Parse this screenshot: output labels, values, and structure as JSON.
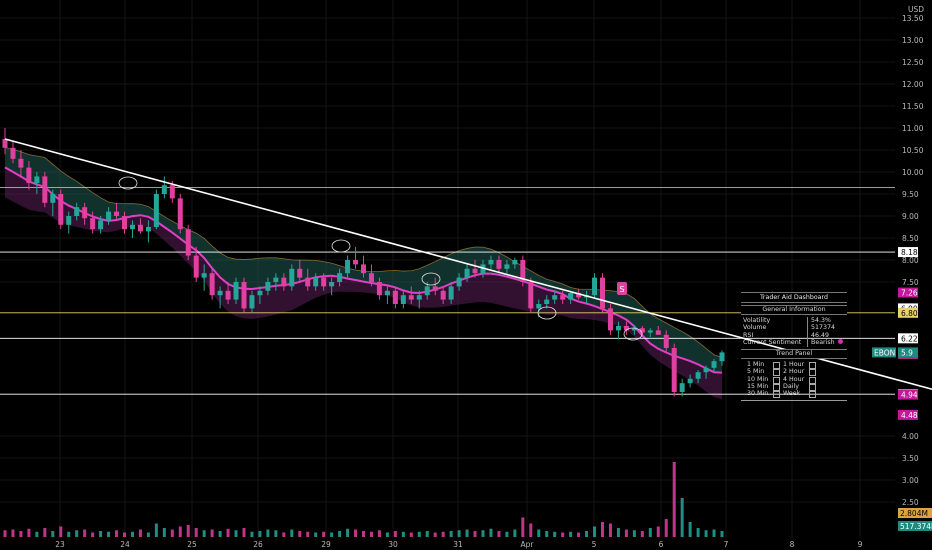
{
  "chart_data": {
    "type": "candlestick",
    "currency": "USD",
    "y_ticks": [
      "13.50",
      "13.00",
      "12.50",
      "12.00",
      "11.50",
      "11.00",
      "10.50",
      "10.00",
      "9.50",
      "9.00",
      "8.50",
      "8.00",
      "7.50",
      "4.00",
      "3.50",
      "3.00",
      "2.50"
    ],
    "ylim": [
      1.2,
      13.9
    ],
    "x_ticks": [
      "23",
      "24",
      "25",
      "26",
      "29",
      "30",
      "31",
      "Apr",
      "5",
      "6",
      "7",
      "8",
      "9"
    ],
    "symbol": "EBON",
    "last_price": "5.9",
    "price_tags": [
      {
        "label": "8.18",
        "value": 8.18,
        "style": "white"
      },
      {
        "label": "7.26",
        "value": 7.26,
        "style": "magenta"
      },
      {
        "label": "6.90",
        "value": 6.9,
        "style": "white"
      },
      {
        "label": "6.80",
        "value": 6.8,
        "style": "yellow"
      },
      {
        "label": "6.22",
        "value": 6.22,
        "style": "white"
      },
      {
        "label": "5.87",
        "value": 5.87,
        "style": "yellow"
      },
      {
        "label": "5.87",
        "value": 5.87,
        "style": "magenta"
      },
      {
        "label": "4.95",
        "value": 4.95,
        "style": "white"
      },
      {
        "label": "4.94",
        "value": 4.94,
        "style": "magenta"
      },
      {
        "label": "4.48",
        "value": 4.48,
        "style": "magenta"
      }
    ],
    "volume_tags": [
      {
        "label": "2.804M",
        "style": "amber"
      },
      {
        "label": "517.374K",
        "style": "teal"
      }
    ],
    "horizontal_levels": [
      {
        "value": 9.65,
        "color": "#cfcfcf"
      },
      {
        "value": 8.18,
        "color": "#ffffff"
      },
      {
        "value": 6.8,
        "color": "#e8d36a"
      },
      {
        "value": 6.22,
        "color": "#ffffff"
      },
      {
        "value": 4.95,
        "color": "#ffffff"
      }
    ],
    "trendline": {
      "from": [
        0,
        10.75
      ],
      "to": [
        13.3,
        4.25
      ]
    },
    "signal_label": "S",
    "candles": [
      [
        0,
        10.75,
        11.0,
        10.4,
        10.55
      ],
      [
        0.1,
        10.55,
        10.7,
        10.2,
        10.3
      ],
      [
        0.2,
        10.3,
        10.5,
        9.9,
        10.1
      ],
      [
        0.3,
        10.1,
        10.25,
        9.6,
        9.75
      ],
      [
        0.4,
        9.75,
        10.0,
        9.5,
        9.9
      ],
      [
        0.5,
        9.9,
        10.0,
        9.2,
        9.3
      ],
      [
        0.6,
        9.3,
        9.6,
        9.0,
        9.5
      ],
      [
        0.7,
        9.5,
        9.6,
        8.7,
        8.8
      ],
      [
        0.8,
        8.8,
        9.1,
        8.6,
        9.0
      ],
      [
        0.9,
        9.0,
        9.3,
        8.9,
        9.2
      ],
      [
        1.0,
        9.2,
        9.3,
        8.8,
        8.95
      ],
      [
        1.1,
        8.95,
        9.1,
        8.6,
        8.7
      ],
      [
        1.2,
        8.7,
        9.0,
        8.6,
        8.9
      ],
      [
        1.3,
        8.9,
        9.2,
        8.8,
        9.1
      ],
      [
        1.4,
        9.1,
        9.3,
        8.9,
        9.0
      ],
      [
        1.5,
        9.0,
        9.1,
        8.6,
        8.7
      ],
      [
        1.6,
        8.7,
        8.9,
        8.5,
        8.8
      ],
      [
        1.7,
        8.8,
        8.95,
        8.6,
        8.65
      ],
      [
        1.8,
        8.65,
        8.9,
        8.4,
        8.75
      ],
      [
        1.9,
        8.75,
        9.6,
        8.7,
        9.5
      ],
      [
        2.0,
        9.5,
        9.9,
        9.4,
        9.7
      ],
      [
        2.1,
        9.7,
        9.8,
        9.3,
        9.4
      ],
      [
        2.2,
        9.4,
        9.5,
        8.6,
        8.7
      ],
      [
        2.3,
        8.7,
        8.8,
        8.0,
        8.1
      ],
      [
        2.4,
        8.1,
        8.3,
        7.5,
        7.6
      ],
      [
        2.5,
        7.6,
        7.9,
        7.3,
        7.7
      ],
      [
        2.6,
        7.7,
        7.8,
        7.1,
        7.2
      ],
      [
        2.7,
        7.2,
        7.4,
        6.9,
        7.3
      ],
      [
        2.8,
        7.3,
        7.5,
        7.0,
        7.1
      ],
      [
        2.9,
        7.1,
        7.6,
        7.0,
        7.5
      ],
      [
        3.0,
        7.5,
        7.6,
        6.8,
        6.9
      ],
      [
        3.1,
        6.9,
        7.3,
        6.8,
        7.2
      ],
      [
        3.2,
        7.2,
        7.4,
        7.0,
        7.3
      ],
      [
        3.3,
        7.3,
        7.6,
        7.2,
        7.5
      ],
      [
        3.4,
        7.5,
        7.7,
        7.3,
        7.6
      ],
      [
        3.5,
        7.6,
        7.7,
        7.3,
        7.4
      ],
      [
        3.6,
        7.4,
        7.9,
        7.3,
        7.8
      ],
      [
        3.7,
        7.8,
        8.0,
        7.5,
        7.6
      ],
      [
        3.8,
        7.6,
        7.8,
        7.3,
        7.4
      ],
      [
        3.9,
        7.4,
        7.7,
        7.3,
        7.6
      ],
      [
        4.0,
        7.6,
        7.7,
        7.3,
        7.4
      ],
      [
        4.1,
        7.4,
        7.6,
        7.2,
        7.5
      ],
      [
        4.2,
        7.5,
        7.8,
        7.4,
        7.7
      ],
      [
        4.3,
        7.7,
        8.1,
        7.6,
        8.0
      ],
      [
        4.4,
        8.0,
        8.3,
        7.8,
        7.9
      ],
      [
        4.5,
        7.9,
        8.1,
        7.6,
        7.7
      ],
      [
        4.6,
        7.7,
        7.9,
        7.4,
        7.5
      ],
      [
        4.7,
        7.5,
        7.6,
        7.1,
        7.2
      ],
      [
        4.8,
        7.2,
        7.4,
        7.0,
        7.3
      ],
      [
        4.9,
        7.3,
        7.4,
        6.9,
        7.0
      ],
      [
        5.0,
        7.0,
        7.3,
        6.9,
        7.2
      ],
      [
        5.1,
        7.2,
        7.4,
        7.0,
        7.1
      ],
      [
        5.2,
        7.1,
        7.3,
        6.9,
        7.2
      ],
      [
        5.3,
        7.2,
        7.5,
        7.1,
        7.4
      ],
      [
        5.4,
        7.4,
        7.6,
        7.2,
        7.3
      ],
      [
        5.5,
        7.3,
        7.4,
        7.0,
        7.1
      ],
      [
        5.6,
        7.1,
        7.5,
        7.0,
        7.4
      ],
      [
        5.7,
        7.4,
        7.7,
        7.3,
        7.6
      ],
      [
        5.8,
        7.6,
        7.9,
        7.5,
        7.8
      ],
      [
        5.9,
        7.8,
        8.0,
        7.6,
        7.7
      ],
      [
        6.0,
        7.7,
        8.0,
        7.6,
        7.9
      ],
      [
        6.1,
        7.9,
        8.1,
        7.8,
        8.0
      ],
      [
        6.2,
        8.0,
        8.1,
        7.7,
        7.8
      ],
      [
        6.3,
        7.8,
        8.0,
        7.7,
        7.9
      ],
      [
        6.4,
        7.9,
        8.05,
        7.8,
        8.0
      ],
      [
        6.5,
        8.0,
        8.1,
        7.4,
        7.5
      ],
      [
        6.6,
        7.5,
        7.6,
        6.8,
        6.9
      ],
      [
        6.7,
        6.9,
        7.1,
        6.7,
        7.0
      ],
      [
        6.8,
        7.0,
        7.2,
        6.9,
        7.1
      ],
      [
        6.9,
        7.1,
        7.3,
        7.0,
        7.2
      ],
      [
        7.0,
        7.2,
        7.3,
        7.0,
        7.1
      ],
      [
        7.1,
        7.1,
        7.3,
        7.0,
        7.25
      ],
      [
        7.2,
        7.25,
        7.35,
        7.1,
        7.15
      ],
      [
        7.3,
        7.15,
        7.3,
        7.0,
        7.2
      ],
      [
        7.4,
        7.2,
        7.7,
        7.15,
        7.6
      ],
      [
        7.5,
        7.6,
        7.7,
        6.8,
        6.9
      ],
      [
        7.6,
        6.9,
        7.0,
        6.3,
        6.4
      ],
      [
        7.7,
        6.4,
        6.6,
        6.2,
        6.5
      ],
      [
        7.8,
        6.5,
        6.6,
        6.3,
        6.4
      ],
      [
        7.9,
        6.4,
        6.5,
        6.3,
        6.45
      ],
      [
        8.0,
        6.45,
        6.5,
        6.3,
        6.35
      ],
      [
        8.1,
        6.35,
        6.45,
        6.25,
        6.4
      ],
      [
        8.2,
        6.4,
        6.5,
        6.3,
        6.3
      ],
      [
        8.3,
        6.3,
        6.4,
        5.9,
        6.0
      ],
      [
        8.4,
        6.0,
        6.1,
        4.9,
        5.0
      ],
      [
        8.5,
        5.0,
        5.3,
        4.9,
        5.2
      ],
      [
        8.6,
        5.2,
        5.4,
        5.1,
        5.3
      ],
      [
        8.7,
        5.3,
        5.5,
        5.2,
        5.45
      ],
      [
        8.8,
        5.45,
        5.6,
        5.3,
        5.55
      ],
      [
        8.9,
        5.55,
        5.75,
        5.45,
        5.7
      ],
      [
        9.0,
        5.7,
        5.95,
        5.6,
        5.9
      ]
    ],
    "volumes": [
      [
        0,
        0.45
      ],
      [
        0.1,
        0.5
      ],
      [
        0.2,
        0.4
      ],
      [
        0.3,
        0.55
      ],
      [
        0.4,
        0.35
      ],
      [
        0.5,
        0.6
      ],
      [
        0.6,
        0.4
      ],
      [
        0.7,
        0.7
      ],
      [
        0.8,
        0.35
      ],
      [
        0.9,
        0.45
      ],
      [
        1.0,
        0.5
      ],
      [
        1.1,
        0.3
      ],
      [
        1.2,
        0.4
      ],
      [
        1.3,
        0.35
      ],
      [
        1.4,
        0.45
      ],
      [
        1.5,
        0.3
      ],
      [
        1.6,
        0.35
      ],
      [
        1.7,
        0.5
      ],
      [
        1.8,
        0.3
      ],
      [
        1.9,
        0.9
      ],
      [
        2.0,
        0.6
      ],
      [
        2.1,
        0.5
      ],
      [
        2.2,
        0.7
      ],
      [
        2.3,
        0.8
      ],
      [
        2.4,
        0.6
      ],
      [
        2.5,
        0.45
      ],
      [
        2.6,
        0.5
      ],
      [
        2.7,
        0.4
      ],
      [
        2.8,
        0.55
      ],
      [
        2.9,
        0.45
      ],
      [
        3.0,
        0.6
      ],
      [
        3.1,
        0.35
      ],
      [
        3.2,
        0.4
      ],
      [
        3.3,
        0.5
      ],
      [
        3.4,
        0.45
      ],
      [
        3.5,
        0.3
      ],
      [
        3.6,
        0.5
      ],
      [
        3.7,
        0.4
      ],
      [
        3.8,
        0.35
      ],
      [
        3.9,
        0.3
      ],
      [
        4.0,
        0.35
      ],
      [
        4.1,
        0.3
      ],
      [
        4.2,
        0.4
      ],
      [
        4.3,
        0.55
      ],
      [
        4.4,
        0.5
      ],
      [
        4.5,
        0.4
      ],
      [
        4.6,
        0.35
      ],
      [
        4.7,
        0.45
      ],
      [
        4.8,
        0.3
      ],
      [
        4.9,
        0.4
      ],
      [
        5.0,
        0.35
      ],
      [
        5.1,
        0.3
      ],
      [
        5.2,
        0.35
      ],
      [
        5.3,
        0.4
      ],
      [
        5.4,
        0.3
      ],
      [
        5.5,
        0.35
      ],
      [
        5.6,
        0.4
      ],
      [
        5.7,
        0.45
      ],
      [
        5.8,
        0.5
      ],
      [
        5.9,
        0.4
      ],
      [
        6.0,
        0.45
      ],
      [
        6.1,
        0.55
      ],
      [
        6.2,
        0.4
      ],
      [
        6.3,
        0.35
      ],
      [
        6.4,
        0.5
      ],
      [
        6.5,
        1.3
      ],
      [
        6.6,
        0.9
      ],
      [
        6.7,
        0.5
      ],
      [
        6.8,
        0.4
      ],
      [
        6.9,
        0.35
      ],
      [
        7.0,
        0.3
      ],
      [
        7.1,
        0.35
      ],
      [
        7.2,
        0.3
      ],
      [
        7.3,
        0.4
      ],
      [
        7.4,
        0.7
      ],
      [
        7.5,
        1.0
      ],
      [
        7.6,
        0.9
      ],
      [
        7.7,
        0.6
      ],
      [
        7.8,
        0.5
      ],
      [
        7.9,
        0.45
      ],
      [
        8.0,
        0.4
      ],
      [
        8.1,
        0.6
      ],
      [
        8.2,
        0.7
      ],
      [
        8.3,
        1.2
      ],
      [
        8.4,
        5.0
      ],
      [
        8.5,
        2.6
      ],
      [
        8.6,
        1.0
      ],
      [
        8.7,
        0.6
      ],
      [
        8.8,
        0.45
      ],
      [
        8.9,
        0.5
      ],
      [
        9.0,
        0.4
      ]
    ]
  },
  "dashboard": {
    "title": "Trader Aid Dashboard",
    "section_general": "General Information",
    "volatility_label": "Volatility",
    "volatility_value": "54.3%",
    "volume_label": "Volume",
    "volume_value": "517374",
    "rsi_label": "RSI",
    "rsi_value": "46.49",
    "sentiment_label": "Current Sentiment",
    "sentiment_value": "Bearish",
    "section_trend": "Trend Panel",
    "trend_rows": [
      {
        "left": "1 Min",
        "right": "1 Hour"
      },
      {
        "left": "5 Min",
        "right": "2 Hour"
      },
      {
        "left": "10 Min",
        "right": "4 Hour"
      },
      {
        "left": "15 Min",
        "right": "Daily"
      },
      {
        "left": "30 Min",
        "right": "Week"
      }
    ]
  },
  "colors": {
    "bull": "#26a69a",
    "bear": "#e040a0",
    "trend": "#ffffff",
    "ma": "#e040c8",
    "cloud_top": "#1f5a52",
    "cloud_bottom": "#5a1f55",
    "level_yellow": "#e8d36a"
  }
}
